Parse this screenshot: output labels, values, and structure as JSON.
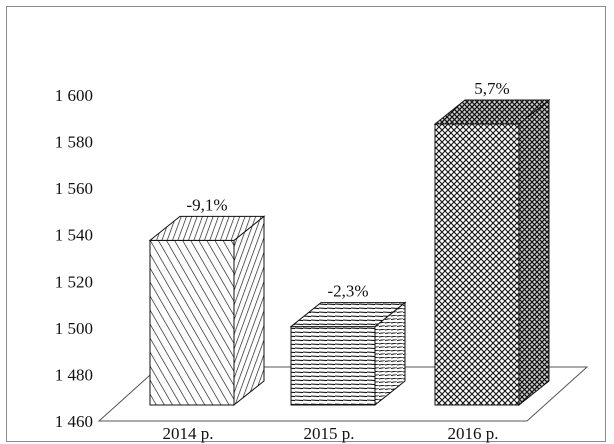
{
  "chart_data": {
    "type": "bar",
    "categories": [
      "2014 р.",
      "2015 р.",
      "2016 р."
    ],
    "values": [
      1547,
      1510,
      1597
    ],
    "data_labels": [
      "-9,1%",
      "-2,3%",
      "5,7%"
    ],
    "ylim": [
      1460,
      1600
    ],
    "y_ticks": [
      1460,
      1480,
      1500,
      1520,
      1540,
      1560,
      1580,
      1600
    ],
    "y_tick_labels": [
      "1 460",
      "1 480",
      "1 500",
      "1 520",
      "1 540",
      "1 560",
      "1 580",
      "1 600"
    ],
    "grid": false,
    "legend": "none",
    "style": "3d-bars-with-hatch-patterns",
    "colors": {
      "ink": "#111111",
      "bar_fill": "#ffffff",
      "frame": "#8c8c8c"
    }
  }
}
